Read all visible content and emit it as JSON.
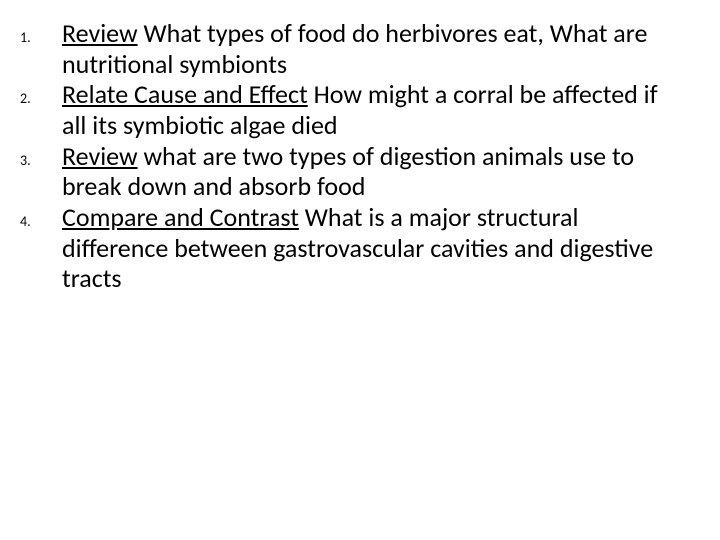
{
  "slide": {
    "background_color": "#ffffff",
    "text_color": "#000000",
    "font_family": "Calibri",
    "body_fontsize_pt": 20,
    "number_fontsize_pt": 10,
    "items": [
      {
        "num": "1.",
        "lead": "Review",
        "rest": " What types of food do herbivores eat, What are nutritional symbionts"
      },
      {
        "num": "2.",
        "lead": "Relate Cause and Effect",
        "rest": " How might a corral be affected if all its symbiotic algae died"
      },
      {
        "num": "3.",
        "lead": "Review",
        "rest": " what are two types of digestion animals use to break down and absorb food"
      },
      {
        "num": "4.",
        "lead": "Compare and Contrast",
        "rest": " What is a major structural difference between gastrovascular cavities and digestive tracts"
      }
    ]
  }
}
